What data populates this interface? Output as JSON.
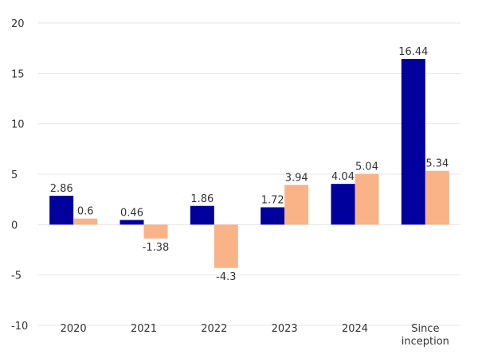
{
  "chart_data": {
    "type": "bar",
    "categories": [
      [
        "2020"
      ],
      [
        "2021"
      ],
      [
        "2022"
      ],
      [
        "2023"
      ],
      [
        "2024"
      ],
      [
        "Since",
        "inception"
      ]
    ],
    "series": [
      {
        "values": [
          2.86,
          0.46,
          1.86,
          1.72,
          4.04,
          16.44
        ],
        "color": "#00009c"
      },
      {
        "values": [
          0.6,
          -1.38,
          -4.3,
          3.94,
          5.04,
          5.34
        ],
        "color": "#f9b387"
      }
    ],
    "data_labels": [
      [
        "2.86",
        "0.46",
        "1.86",
        "1.72",
        "4.04",
        "16.44"
      ],
      [
        "0.6",
        "-1.38",
        "-4.3",
        "3.94",
        "5.04",
        "5.34"
      ]
    ],
    "y_ticks": [
      20,
      15,
      10,
      5,
      0,
      -5,
      -10
    ],
    "ylim": [
      -10,
      20
    ],
    "grid": true,
    "legend": "none"
  }
}
